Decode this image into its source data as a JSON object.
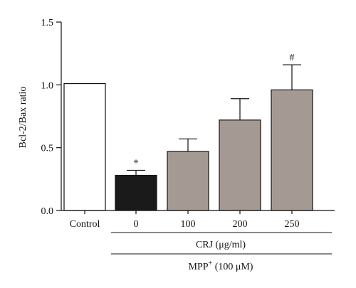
{
  "chart_data": {
    "type": "bar",
    "categories": [
      "Control",
      "0",
      "100",
      "200",
      "250"
    ],
    "values": [
      1.01,
      0.28,
      0.47,
      0.72,
      0.96
    ],
    "error_bars": [
      0.0,
      0.04,
      0.1,
      0.17,
      0.2
    ],
    "bar_colors": [
      "#ffffff",
      "#1a1a1a",
      "#a49a93",
      "#a49a93",
      "#a49a93"
    ],
    "annotations": [
      "",
      "*",
      "",
      "",
      "#"
    ],
    "title": "",
    "xlabel": "",
    "ylabel": "Bcl-2/Bax ratio",
    "ylim": [
      0,
      1.5
    ],
    "yticks": [
      0.0,
      0.5,
      1.0,
      1.5
    ],
    "ytick_labels": [
      "0.0",
      "0.5",
      "1.0",
      "1.5"
    ],
    "grid": false,
    "group_labels": {
      "crj": "CRJ (μg/ml)",
      "mpp_prefix": "MPP",
      "mpp_sup": "+",
      "mpp_suffix": " (100 μM)"
    }
  },
  "colors": {
    "axis": "#111111",
    "bar_edge": "#111111"
  }
}
